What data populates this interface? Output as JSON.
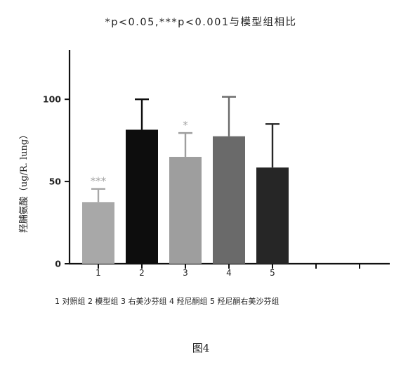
{
  "chart_data": {
    "type": "bar",
    "title": "*p<0.05,***p<0.001与模型组相比",
    "ylabel": "羟脯氨酸（ug/R. lung）",
    "xlabel": "",
    "categories": [
      "1",
      "2",
      "3",
      "4",
      "5"
    ],
    "x_ticks_total": 7,
    "values": [
      37.5,
      81.5,
      65,
      77.5,
      58.5
    ],
    "errors": [
      8,
      18.5,
      14.5,
      24,
      26.5
    ],
    "significance": [
      "***",
      "",
      "*",
      "",
      ""
    ],
    "bar_colors": [
      "#a8a8a8",
      "#0d0d0d",
      "#9e9e9e",
      "#6a6a6a",
      "#262626"
    ],
    "significance_color": "#a5a5a5",
    "ylim": [
      0,
      130
    ],
    "yticks": [
      "0",
      "50",
      "100"
    ],
    "grid": false,
    "legend_text": "1 对照组 2 模型组 3 右美沙芬组 4 羟尼酮组 5 羟尼酮右美沙芬组"
  },
  "caption": "图4"
}
